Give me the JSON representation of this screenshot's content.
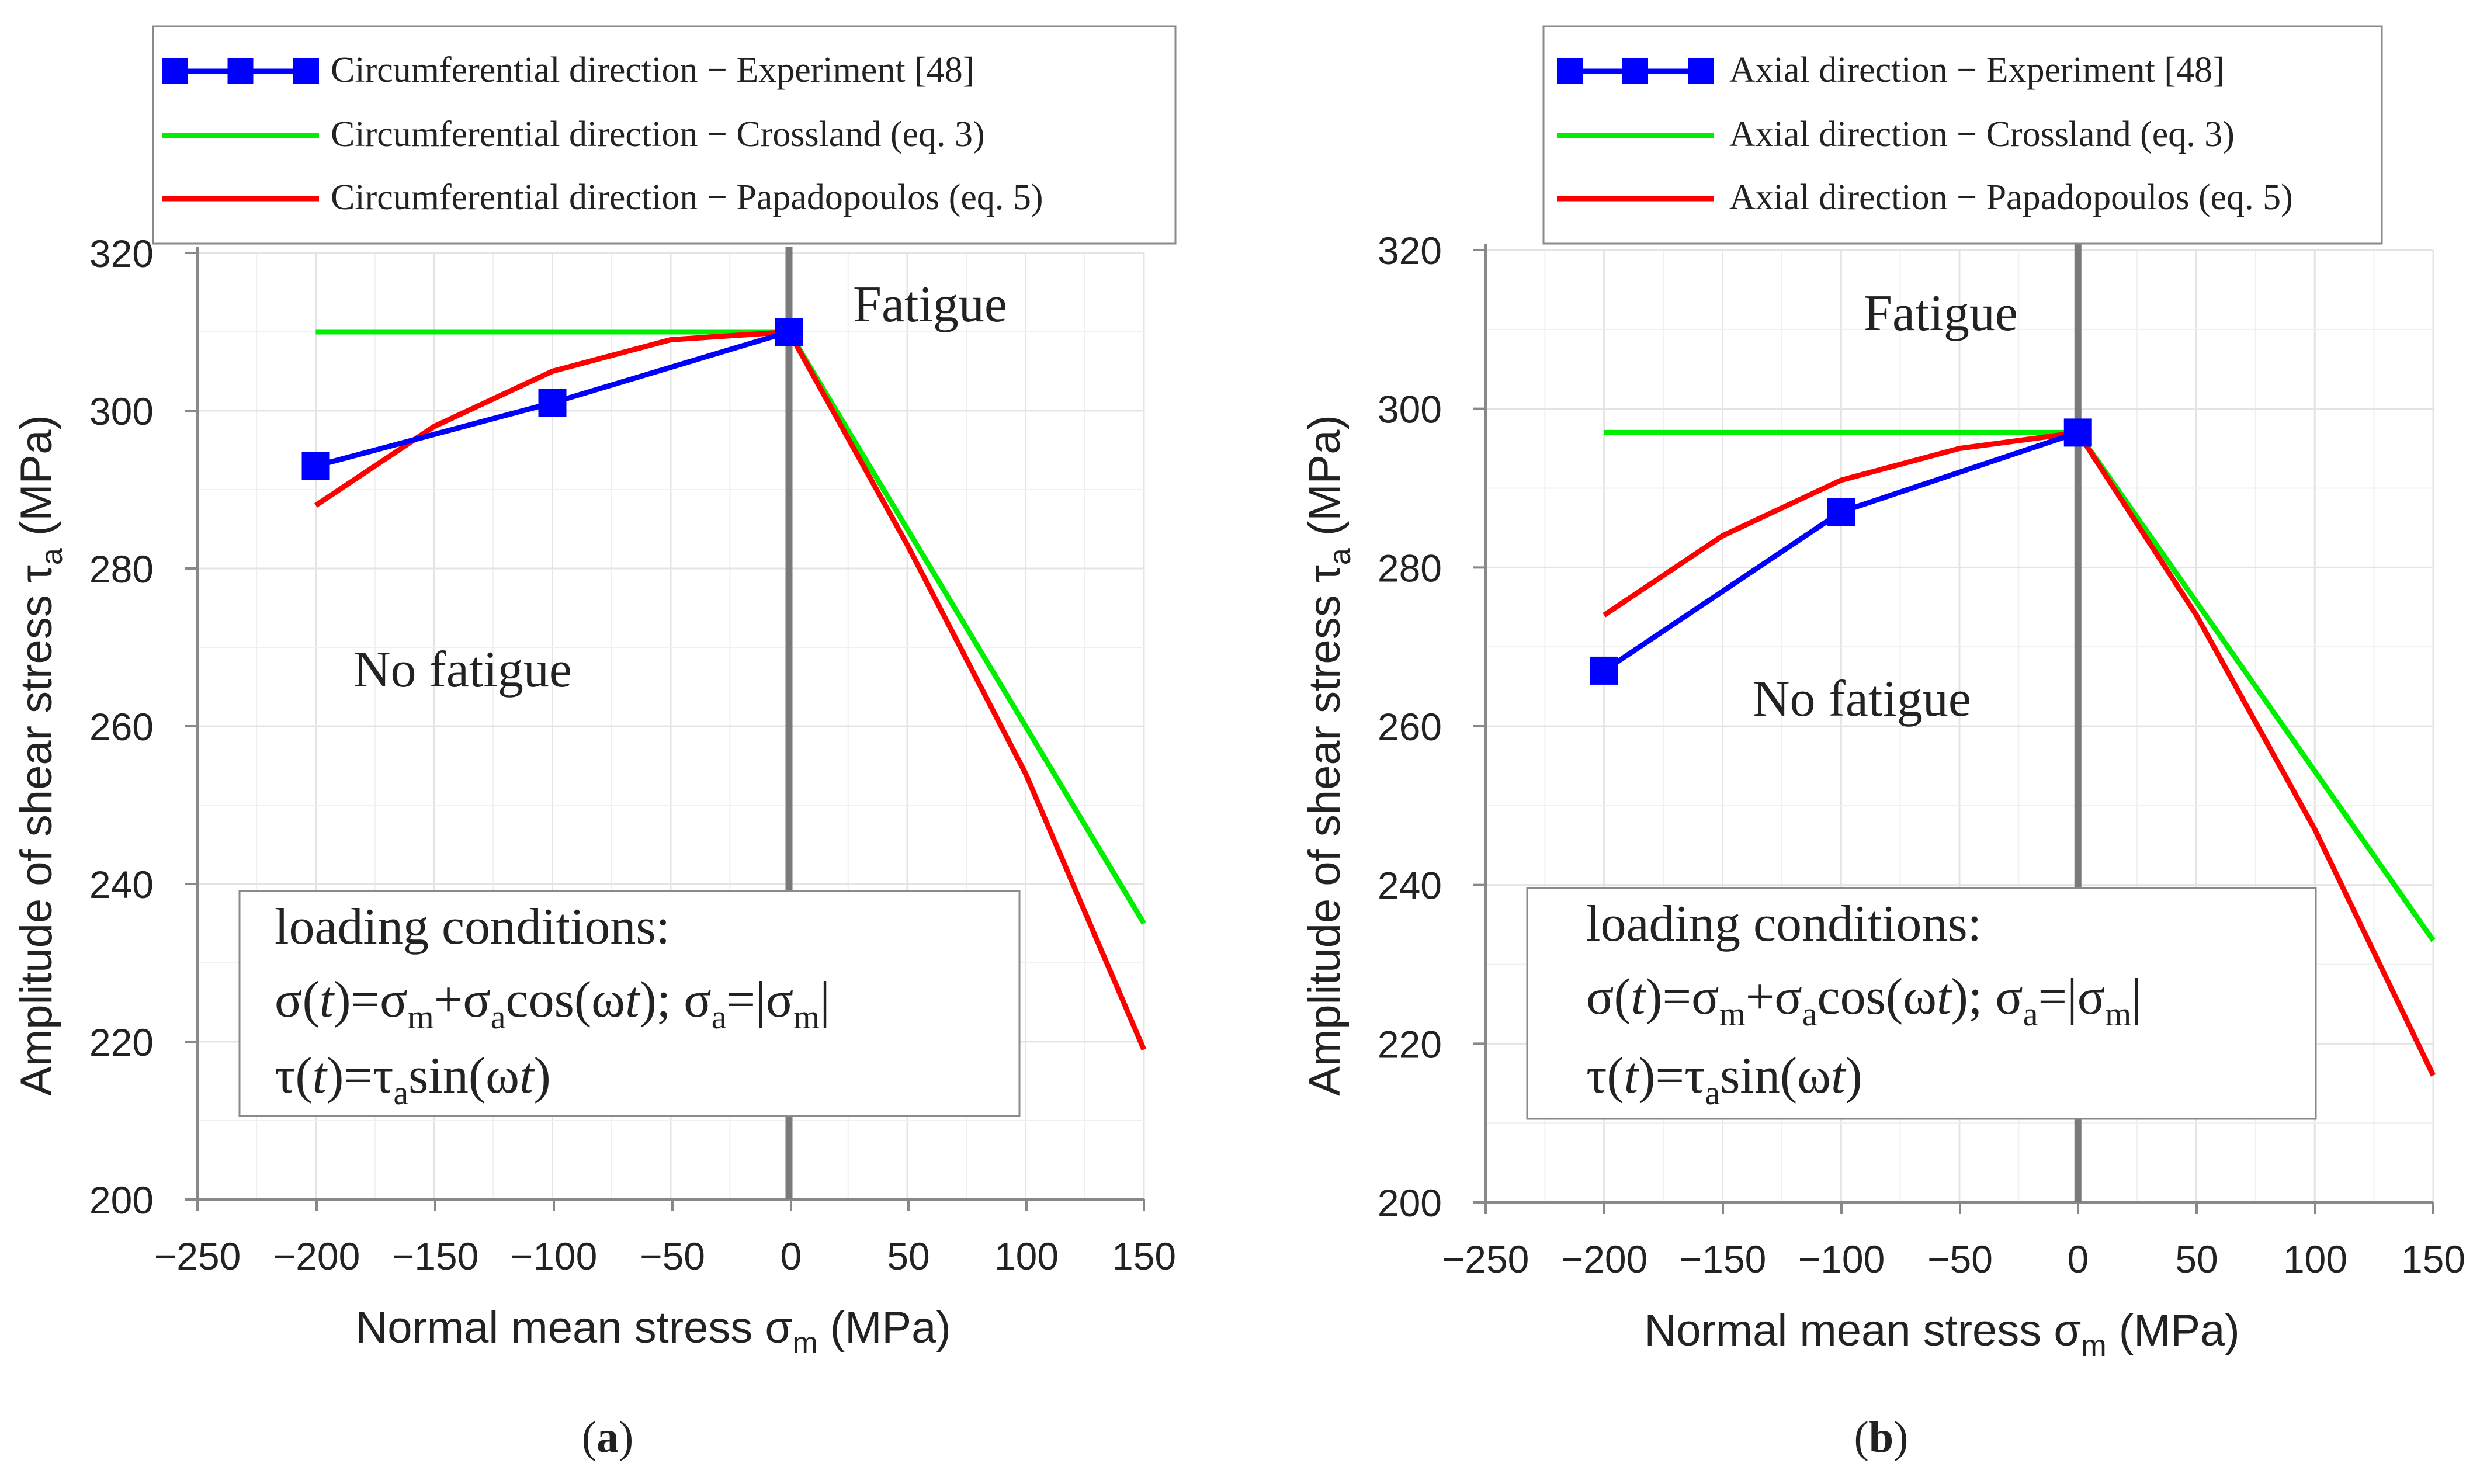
{
  "chart_data": [
    {
      "type": "line",
      "panel_label": "a",
      "xlabel": "Normal mean stress σm (MPa)",
      "ylabel": "Amplitude of shear stress τa (MPa)",
      "xlim": [
        -250,
        150
      ],
      "ylim": [
        200,
        320
      ],
      "x_ticks": [
        -250,
        -200,
        -150,
        -100,
        -50,
        0,
        50,
        100,
        150
      ],
      "y_ticks": [
        200,
        220,
        240,
        260,
        280,
        300,
        320
      ],
      "grid": true,
      "legend": "top",
      "series": [
        {
          "name": "Circumferential direction - Experiment [48]",
          "color": "#0000ff",
          "markers": true,
          "x": [
            -200,
            -100,
            0
          ],
          "y": [
            293,
            301,
            310
          ]
        },
        {
          "name": "Circumferential direction - Crossland (eq. 3)",
          "color": "#00ee00",
          "markers": false,
          "x": [
            -200,
            0,
            150
          ],
          "y": [
            310,
            310,
            235
          ]
        },
        {
          "name": "Circumferential direction - Papadopoulos (eq. 5)",
          "color": "#ff0000",
          "markers": false,
          "x": [
            -200,
            -150,
            -100,
            -50,
            0,
            50,
            100,
            150
          ],
          "y": [
            288,
            298,
            305,
            309,
            310,
            283,
            254,
            219
          ]
        }
      ],
      "annotations": {
        "fatigue": "Fatigue",
        "no_fatigue": "No fatigue",
        "loading_title": "loading conditions:"
      }
    },
    {
      "type": "line",
      "panel_label": "b",
      "xlabel": "Normal mean stress σm (MPa)",
      "ylabel": "Amplitude of shear stress τa (MPa)",
      "xlim": [
        -250,
        150
      ],
      "ylim": [
        200,
        320
      ],
      "x_ticks": [
        -250,
        -200,
        -150,
        -100,
        -50,
        0,
        50,
        100,
        150
      ],
      "y_ticks": [
        200,
        220,
        240,
        260,
        280,
        300,
        320
      ],
      "grid": true,
      "legend": "top",
      "series": [
        {
          "name": "Axial direction - Experiment [48]",
          "color": "#0000ff",
          "markers": true,
          "x": [
            -200,
            -100,
            0
          ],
          "y": [
            267,
            287,
            297
          ]
        },
        {
          "name": "Axial direction - Crossland (eq. 3)",
          "color": "#00ee00",
          "markers": false,
          "x": [
            -200,
            0,
            150
          ],
          "y": [
            297,
            297,
            233
          ]
        },
        {
          "name": "Axial direction - Papadopoulos (eq. 5)",
          "color": "#ff0000",
          "markers": false,
          "x": [
            -200,
            -150,
            -100,
            -50,
            0,
            50,
            100,
            150
          ],
          "y": [
            274,
            284,
            291,
            295,
            297,
            274,
            247,
            216
          ]
        }
      ],
      "annotations": {
        "fatigue": "Fatigue",
        "no_fatigue": "No fatigue",
        "loading_title": "loading conditions:"
      }
    }
  ]
}
